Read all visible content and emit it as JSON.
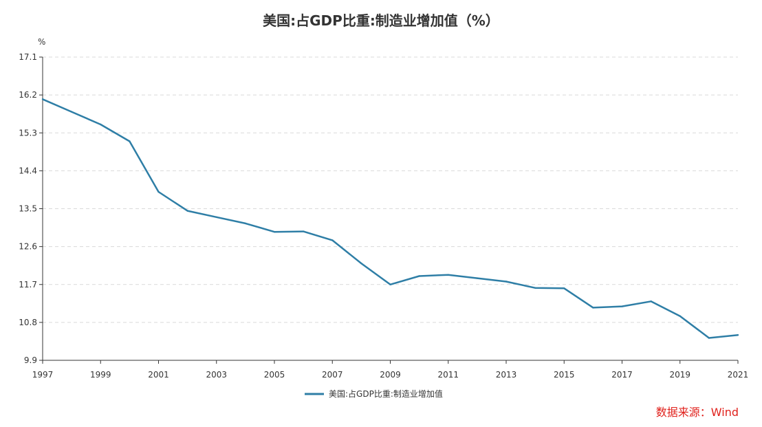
{
  "title": "美国:占GDP比重:制造业增加值（%）",
  "source": "数据来源：Wind",
  "chart_data": {
    "type": "line",
    "title": "美国:占GDP比重:制造业增加值（%）",
    "ylabel": "%",
    "xlabel": "",
    "x": [
      1997,
      1998,
      1999,
      2000,
      2001,
      2002,
      2003,
      2004,
      2005,
      2006,
      2007,
      2008,
      2009,
      2010,
      2011,
      2012,
      2013,
      2014,
      2015,
      2016,
      2017,
      2018,
      2019,
      2020,
      2021
    ],
    "x_tick_labels": [
      "1997",
      "1999",
      "2001",
      "2003",
      "2005",
      "2007",
      "2009",
      "2011",
      "2013",
      "2015",
      "2017",
      "2019",
      "2021"
    ],
    "y_tick_labels": [
      "9.9",
      "10.8",
      "11.7",
      "12.6",
      "13.5",
      "14.4",
      "15.3",
      "16.2",
      "17.1"
    ],
    "ylim": [
      9.9,
      17.1
    ],
    "xlim": [
      1997,
      2021
    ],
    "grid": true,
    "legend_position": "bottom-center",
    "series": [
      {
        "name": "美国:占GDP比重:制造业增加值",
        "color": "#2e7ea6",
        "values": [
          16.1,
          15.8,
          15.5,
          15.1,
          13.9,
          13.45,
          13.3,
          13.15,
          12.95,
          12.96,
          12.75,
          12.2,
          11.7,
          11.9,
          11.93,
          11.85,
          11.77,
          11.62,
          11.61,
          11.15,
          11.18,
          11.3,
          10.95,
          10.43,
          10.5
        ]
      }
    ]
  }
}
